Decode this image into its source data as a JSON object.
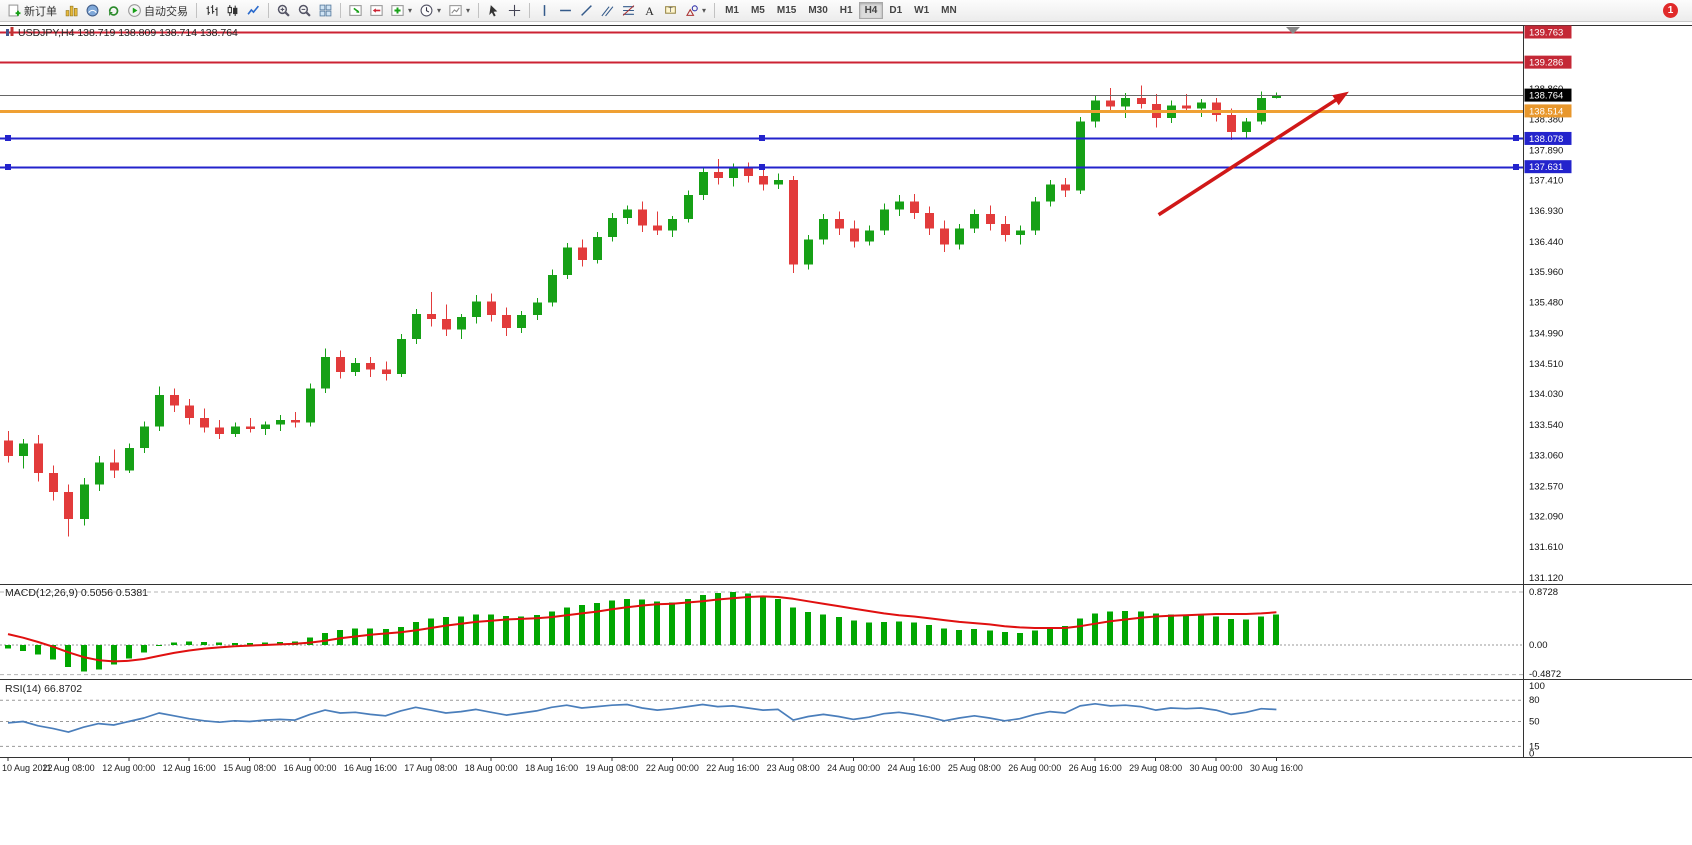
{
  "toolbar": {
    "notification_badge": "1",
    "items": [
      {
        "type": "button",
        "icon": "neworder",
        "label": "新订单",
        "name": "new-order-button"
      },
      {
        "type": "button",
        "icon": "chartsbar",
        "name": "charts-button"
      },
      {
        "type": "button",
        "icon": "profile",
        "name": "profiles-button"
      },
      {
        "type": "button",
        "icon": "refresh",
        "name": "refresh-button"
      },
      {
        "type": "button",
        "icon": "play",
        "label": "自动交易",
        "name": "auto-trading-button"
      },
      {
        "type": "sep"
      },
      {
        "type": "button",
        "icon": "ohlcbars",
        "name": "bar-chart-mode-button"
      },
      {
        "type": "button",
        "icon": "candlesicon",
        "name": "candlestick-mode-button"
      },
      {
        "type": "button",
        "icon": "linechart",
        "name": "line-chart-mode-button"
      },
      {
        "type": "sep"
      },
      {
        "type": "button",
        "icon": "zoomin",
        "name": "zoom-in-button"
      },
      {
        "type": "button",
        "icon": "zoomout",
        "name": "zoom-out-button"
      },
      {
        "type": "button",
        "icon": "tile",
        "name": "tile-windows-button"
      },
      {
        "type": "sep"
      },
      {
        "type": "button",
        "icon": "autoscroll",
        "name": "auto-scroll-button"
      },
      {
        "type": "button",
        "icon": "chartshift",
        "name": "chart-shift-button"
      },
      {
        "type": "button",
        "icon": "indicators",
        "dd": true,
        "name": "indicators-button"
      },
      {
        "type": "button",
        "icon": "clock",
        "dd": true,
        "name": "periods-button"
      },
      {
        "type": "button",
        "icon": "template",
        "dd": true,
        "name": "templates-button"
      },
      {
        "type": "sep"
      },
      {
        "type": "button",
        "icon": "cursor",
        "name": "cursor-button"
      },
      {
        "type": "button",
        "icon": "crosshair",
        "name": "crosshair-button"
      },
      {
        "type": "sep"
      },
      {
        "type": "button",
        "icon": "vline",
        "name": "vertical-line-button"
      },
      {
        "type": "button",
        "icon": "hline",
        "name": "horizontal-line-button"
      },
      {
        "type": "button",
        "icon": "trendline",
        "name": "trendline-button"
      },
      {
        "type": "button",
        "icon": "channel",
        "name": "equidistant-channel-button"
      },
      {
        "type": "button",
        "icon": "fibo",
        "name": "fibonacci-button"
      },
      {
        "type": "button",
        "icon": "textA",
        "name": "text-button"
      },
      {
        "type": "button",
        "icon": "textlabel",
        "name": "text-label-button"
      },
      {
        "type": "button",
        "icon": "shapes",
        "dd": true,
        "name": "arrows-button"
      },
      {
        "type": "sep"
      }
    ],
    "timeframes": [
      "M1",
      "M5",
      "M15",
      "M30",
      "H1",
      "H4",
      "D1",
      "W1",
      "MN"
    ],
    "active_timeframe": "H4"
  },
  "chart_data": [
    {
      "type": "candlestick",
      "symbol": "USDJPY,H4",
      "quote_line": "138.719 138.809 138.714 138.764",
      "up_color": "#16A016",
      "down_color": "#E23B3B",
      "ylim": [
        131.02,
        139.9
      ],
      "grid": false,
      "y_ticks": [
        "138.860",
        "138.380",
        "137.890",
        "137.410",
        "136.930",
        "136.440",
        "135.960",
        "135.480",
        "134.990",
        "134.510",
        "134.030",
        "133.540",
        "133.060",
        "132.570",
        "132.090",
        "131.610",
        "131.120"
      ],
      "x_labels": [
        "10 Aug 2022",
        "11 Aug 08:00",
        "12 Aug 00:00",
        "12 Aug 16:00",
        "15 Aug 08:00",
        "16 Aug 00:00",
        "16 Aug 16:00",
        "17 Aug 08:00",
        "18 Aug 00:00",
        "18 Aug 16:00",
        "19 Aug 08:00",
        "22 Aug 00:00",
        "22 Aug 16:00",
        "23 Aug 08:00",
        "24 Aug 00:00",
        "24 Aug 16:00",
        "25 Aug 08:00",
        "26 Aug 00:00",
        "26 Aug 16:00",
        "29 Aug 08:00",
        "30 Aug 00:00",
        "30 Aug 16:00"
      ],
      "x_label_every_bars": 4,
      "ohlc": [
        [
          133.3,
          133.45,
          132.95,
          133.05
        ],
        [
          133.05,
          133.32,
          132.85,
          133.25
        ],
        [
          133.25,
          133.38,
          132.65,
          132.78
        ],
        [
          132.78,
          132.9,
          132.35,
          132.48
        ],
        [
          132.48,
          132.6,
          131.78,
          132.05
        ],
        [
          132.05,
          132.7,
          131.95,
          132.6
        ],
        [
          132.6,
          133.05,
          132.5,
          132.95
        ],
        [
          132.95,
          133.15,
          132.7,
          132.82
        ],
        [
          132.82,
          133.25,
          132.78,
          133.18
        ],
        [
          133.18,
          133.6,
          133.1,
          133.52
        ],
        [
          133.52,
          134.15,
          133.45,
          134.02
        ],
        [
          134.02,
          134.12,
          133.75,
          133.85
        ],
        [
          133.85,
          133.95,
          133.55,
          133.65
        ],
        [
          133.65,
          133.8,
          133.42,
          133.5
        ],
        [
          133.5,
          133.62,
          133.32,
          133.4
        ],
        [
          133.4,
          133.58,
          133.35,
          133.52
        ],
        [
          133.52,
          133.65,
          133.42,
          133.48
        ],
        [
          133.48,
          133.6,
          133.38,
          133.55
        ],
        [
          133.55,
          133.7,
          133.45,
          133.62
        ],
        [
          133.62,
          133.75,
          133.5,
          133.58
        ],
        [
          133.58,
          134.2,
          133.52,
          134.12
        ],
        [
          134.12,
          134.75,
          134.05,
          134.62
        ],
        [
          134.62,
          134.72,
          134.28,
          134.38
        ],
        [
          134.38,
          134.6,
          134.32,
          134.52
        ],
        [
          134.52,
          134.62,
          134.3,
          134.42
        ],
        [
          134.42,
          134.55,
          134.25,
          134.35
        ],
        [
          134.35,
          134.98,
          134.3,
          134.9
        ],
        [
          134.9,
          135.38,
          134.82,
          135.3
        ],
        [
          135.3,
          135.65,
          135.1,
          135.22
        ],
        [
          135.22,
          135.45,
          134.95,
          135.05
        ],
        [
          135.05,
          135.3,
          134.9,
          135.25
        ],
        [
          135.25,
          135.6,
          135.15,
          135.5
        ],
        [
          135.5,
          135.62,
          135.18,
          135.28
        ],
        [
          135.28,
          135.4,
          134.95,
          135.08
        ],
        [
          135.08,
          135.35,
          135.0,
          135.28
        ],
        [
          135.28,
          135.55,
          135.2,
          135.48
        ],
        [
          135.48,
          136.0,
          135.42,
          135.92
        ],
        [
          135.92,
          136.42,
          135.85,
          136.35
        ],
        [
          136.35,
          136.48,
          136.05,
          136.15
        ],
        [
          136.15,
          136.6,
          136.1,
          136.52
        ],
        [
          136.52,
          136.9,
          136.45,
          136.82
        ],
        [
          136.82,
          137.02,
          136.72,
          136.95
        ],
        [
          136.95,
          137.08,
          136.6,
          136.7
        ],
        [
          136.7,
          136.92,
          136.55,
          136.62
        ],
        [
          136.62,
          136.85,
          136.52,
          136.8
        ],
        [
          136.8,
          137.25,
          136.75,
          137.18
        ],
        [
          137.18,
          137.62,
          137.1,
          137.55
        ],
        [
          137.55,
          137.75,
          137.35,
          137.45
        ],
        [
          137.45,
          137.68,
          137.32,
          137.6
        ],
        [
          137.6,
          137.7,
          137.38,
          137.48
        ],
        [
          137.48,
          137.58,
          137.25,
          137.35
        ],
        [
          137.35,
          137.52,
          137.28,
          137.42
        ],
        [
          137.42,
          137.48,
          135.95,
          136.08
        ],
        [
          136.08,
          136.55,
          136.0,
          136.48
        ],
        [
          136.48,
          136.88,
          136.4,
          136.8
        ],
        [
          136.8,
          136.92,
          136.55,
          136.65
        ],
        [
          136.65,
          136.78,
          136.35,
          136.45
        ],
        [
          136.45,
          136.7,
          136.38,
          136.62
        ],
        [
          136.62,
          137.05,
          136.55,
          136.95
        ],
        [
          136.95,
          137.18,
          136.85,
          137.08
        ],
        [
          137.08,
          137.2,
          136.8,
          136.9
        ],
        [
          136.9,
          137.0,
          136.55,
          136.65
        ],
        [
          136.65,
          136.78,
          136.28,
          136.4
        ],
        [
          136.4,
          136.72,
          136.32,
          136.65
        ],
        [
          136.65,
          136.95,
          136.58,
          136.88
        ],
        [
          136.88,
          137.02,
          136.62,
          136.72
        ],
        [
          136.72,
          136.85,
          136.45,
          136.55
        ],
        [
          136.55,
          136.7,
          136.4,
          136.62
        ],
        [
          136.62,
          137.15,
          136.55,
          137.08
        ],
        [
          137.08,
          137.42,
          137.0,
          137.35
        ],
        [
          137.35,
          137.45,
          137.15,
          137.25
        ],
        [
          137.25,
          138.42,
          137.2,
          138.35
        ],
        [
          138.35,
          138.75,
          138.25,
          138.68
        ],
        [
          138.68,
          138.88,
          138.48,
          138.58
        ],
        [
          138.58,
          138.8,
          138.4,
          138.72
        ],
        [
          138.72,
          138.92,
          138.55,
          138.62
        ],
        [
          138.62,
          138.78,
          138.25,
          138.4
        ],
        [
          138.4,
          138.68,
          138.32,
          138.6
        ],
        [
          138.6,
          138.78,
          138.48,
          138.55
        ],
        [
          138.55,
          138.7,
          138.42,
          138.65
        ],
        [
          138.65,
          138.72,
          138.35,
          138.45
        ],
        [
          138.45,
          138.55,
          138.05,
          138.18
        ],
        [
          138.18,
          138.4,
          138.08,
          138.35
        ],
        [
          138.35,
          138.82,
          138.3,
          138.72
        ],
        [
          138.719,
          138.809,
          138.714,
          138.764
        ]
      ],
      "hlines": [
        {
          "price": "139.763",
          "value": 139.763,
          "color": "#CC2233",
          "width": 2,
          "badge": "#C42836",
          "name": "resistance-line-1"
        },
        {
          "price": "139.286",
          "value": 139.286,
          "color": "#CC2233",
          "width": 2,
          "badge": "#C42836",
          "name": "resistance-line-2"
        },
        {
          "price": "138.764",
          "value": 138.764,
          "color": "#666666",
          "width": 1,
          "badge": "#000000",
          "name": "bid-price-line"
        },
        {
          "price": "138.514",
          "value": 138.514,
          "color": "#EFA033",
          "width": 3,
          "badge": "#E8972C",
          "name": "support-line-orange"
        },
        {
          "price": "138.078",
          "value": 138.078,
          "color": "#2323CC",
          "width": 2,
          "badge": "#2323CC",
          "handles": true,
          "name": "support-line-blue-1"
        },
        {
          "price": "137.631",
          "value": 137.631,
          "color": "#2323CC",
          "width": 2,
          "badge": "#2323CC",
          "handles": true,
          "name": "support-line-blue-2"
        }
      ],
      "arrow": {
        "from_bar": 76.2,
        "from_price": 136.87,
        "to_bar": 88.8,
        "to_price": 138.82,
        "color": "#D01818"
      }
    },
    {
      "type": "bar",
      "label": "MACD(12,26,9) 0.5056 0.5381",
      "y_ticks": [
        "0.8728",
        "0.00",
        "-0.4872"
      ],
      "histogram_color": "#00A600",
      "signal_color": "#E01010",
      "histogram": [
        -0.06,
        -0.1,
        -0.16,
        -0.24,
        -0.36,
        -0.44,
        -0.4,
        -0.32,
        -0.22,
        -0.12,
        -0.02,
        0.04,
        0.06,
        0.05,
        0.04,
        0.03,
        0.03,
        0.04,
        0.05,
        0.06,
        0.12,
        0.2,
        0.25,
        0.27,
        0.27,
        0.26,
        0.3,
        0.38,
        0.44,
        0.46,
        0.47,
        0.5,
        0.5,
        0.48,
        0.47,
        0.49,
        0.55,
        0.62,
        0.66,
        0.69,
        0.73,
        0.76,
        0.75,
        0.72,
        0.7,
        0.76,
        0.82,
        0.86,
        0.8728,
        0.85,
        0.81,
        0.76,
        0.62,
        0.54,
        0.5,
        0.46,
        0.4,
        0.37,
        0.38,
        0.39,
        0.37,
        0.33,
        0.27,
        0.25,
        0.26,
        0.24,
        0.21,
        0.2,
        0.24,
        0.29,
        0.31,
        0.44,
        0.52,
        0.55,
        0.56,
        0.55,
        0.52,
        0.5,
        0.49,
        0.49,
        0.47,
        0.43,
        0.42,
        0.47,
        0.5056
      ],
      "signal": [
        0.18,
        0.12,
        0.05,
        -0.03,
        -0.12,
        -0.2,
        -0.25,
        -0.27,
        -0.26,
        -0.23,
        -0.18,
        -0.13,
        -0.09,
        -0.06,
        -0.04,
        -0.02,
        -0.01,
        0.0,
        0.01,
        0.02,
        0.04,
        0.07,
        0.11,
        0.14,
        0.17,
        0.19,
        0.21,
        0.24,
        0.28,
        0.32,
        0.35,
        0.38,
        0.4,
        0.42,
        0.43,
        0.44,
        0.46,
        0.49,
        0.52,
        0.55,
        0.59,
        0.62,
        0.65,
        0.67,
        0.68,
        0.7,
        0.72,
        0.75,
        0.77,
        0.79,
        0.8,
        0.79,
        0.76,
        0.72,
        0.68,
        0.64,
        0.6,
        0.56,
        0.52,
        0.49,
        0.47,
        0.44,
        0.41,
        0.38,
        0.36,
        0.34,
        0.31,
        0.29,
        0.28,
        0.28,
        0.28,
        0.31,
        0.35,
        0.39,
        0.42,
        0.45,
        0.47,
        0.48,
        0.49,
        0.5,
        0.51,
        0.51,
        0.51,
        0.52,
        0.5381
      ]
    },
    {
      "type": "line",
      "label": "RSI(14) 66.8702",
      "color": "#4A7EBB",
      "y_ticks": [
        "100",
        "80",
        "50",
        "15",
        "0"
      ],
      "levels": [
        80,
        50,
        15
      ],
      "values": [
        48,
        50,
        44,
        40,
        35,
        42,
        47,
        45,
        50,
        55,
        62,
        58,
        54,
        51,
        49,
        51,
        50,
        52,
        53,
        52,
        60,
        66,
        62,
        63,
        60,
        58,
        65,
        70,
        66,
        62,
        64,
        67,
        63,
        59,
        62,
        65,
        70,
        73,
        69,
        71,
        73,
        74,
        69,
        66,
        68,
        71,
        74,
        71,
        72,
        69,
        66,
        67,
        52,
        57,
        60,
        57,
        53,
        56,
        61,
        63,
        60,
        56,
        51,
        55,
        58,
        55,
        51,
        54,
        60,
        64,
        62,
        72,
        75,
        72,
        73,
        71,
        66,
        69,
        68,
        69,
        66,
        60,
        63,
        68,
        66.87
      ]
    }
  ]
}
